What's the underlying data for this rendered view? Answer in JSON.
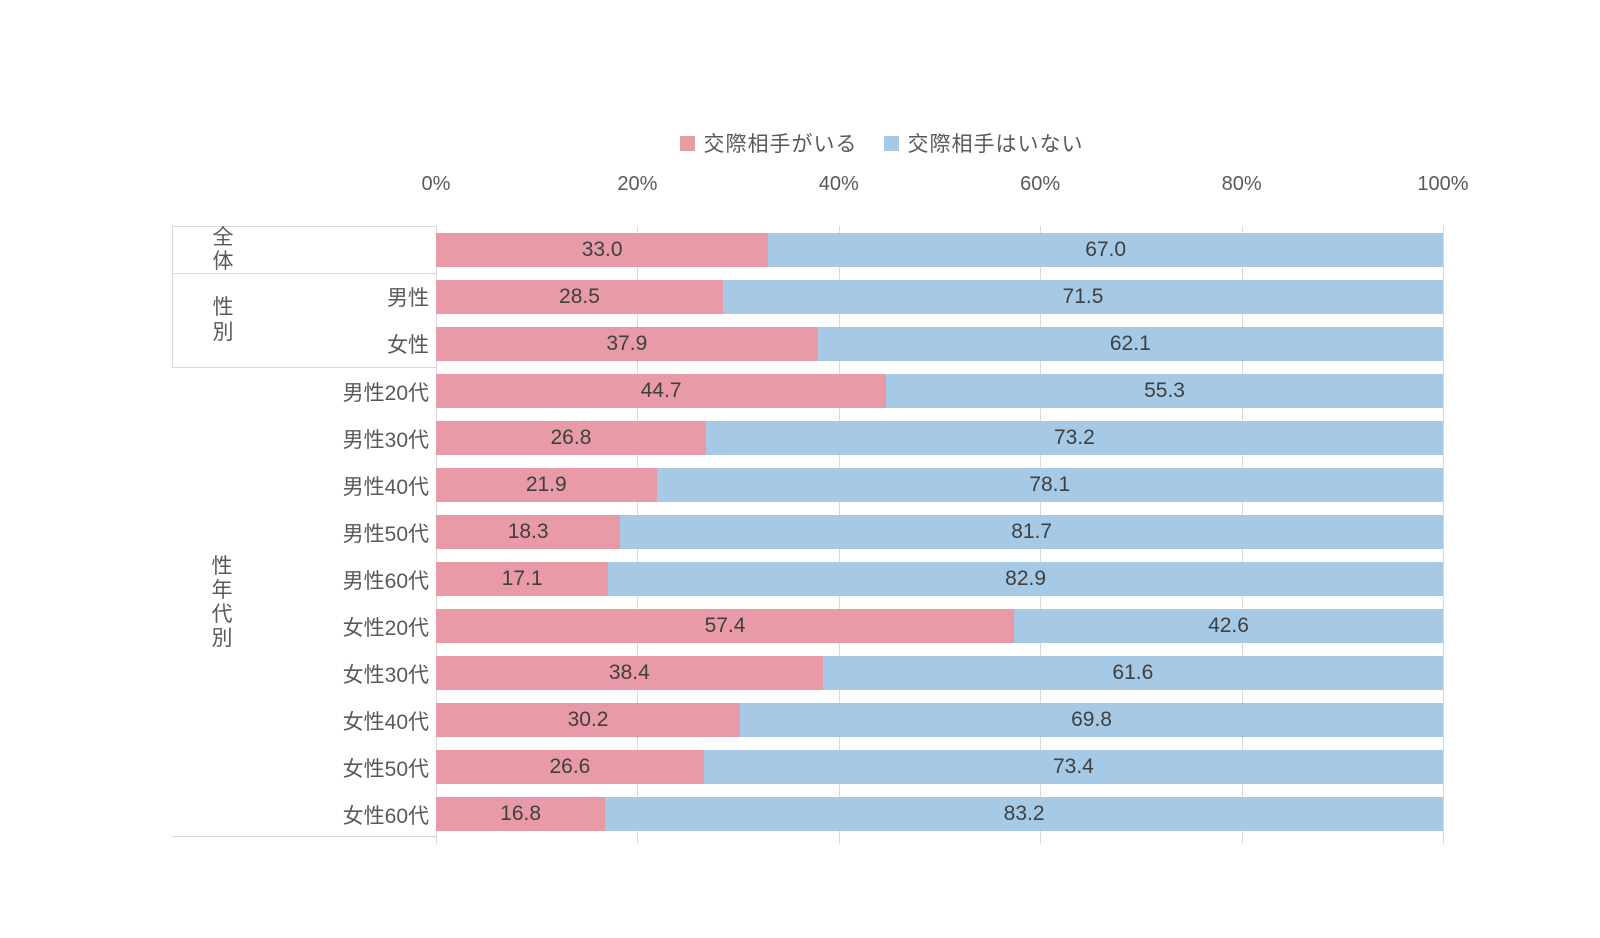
{
  "chart_data": {
    "type": "bar",
    "variant": "100-percent-stacked",
    "orientation": "horizontal",
    "title": "",
    "legend": {
      "position": "top",
      "items": [
        {
          "label": "交際相手がいる",
          "color": "#E89BA7"
        },
        {
          "label": "交際相手はいない",
          "color": "#A6C9E5"
        }
      ]
    },
    "x_axis": {
      "ticks": [
        "0%",
        "20%",
        "40%",
        "60%",
        "80%",
        "100%"
      ],
      "tick_values": [
        0,
        20,
        40,
        60,
        80,
        100
      ],
      "range": [
        0,
        100
      ],
      "unit": "%",
      "grid": true
    },
    "groups": [
      {
        "label": "全体",
        "span": 1,
        "show_row_labels": false
      },
      {
        "label": "性別",
        "span": 2,
        "show_row_labels": true
      },
      {
        "label": "性年代別",
        "span": 10,
        "show_row_labels": true
      }
    ],
    "categories": [
      "全体",
      "男性",
      "女性",
      "男性20代",
      "男性30代",
      "男性40代",
      "男性50代",
      "男性60代",
      "女性20代",
      "女性30代",
      "女性40代",
      "女性50代",
      "女性60代"
    ],
    "series": [
      {
        "name": "交際相手がいる",
        "color": "#E89BA7",
        "values": [
          33.0,
          28.5,
          37.9,
          44.7,
          26.8,
          21.9,
          18.3,
          17.1,
          57.4,
          38.4,
          30.2,
          26.6,
          16.8
        ]
      },
      {
        "name": "交際相手はいない",
        "color": "#A6C9E5",
        "values": [
          67.0,
          71.5,
          62.1,
          55.3,
          73.2,
          78.1,
          81.7,
          82.9,
          42.6,
          61.6,
          69.8,
          73.4,
          83.2
        ]
      }
    ],
    "value_label_decimals": 1
  },
  "colors": {
    "series_1": "#E89BA7",
    "series_2": "#A6C9E5",
    "gridline": "#D9D9D9",
    "panel_border": "#D9D9D9",
    "tick_label_text": "#595959",
    "category_label_text": "#595959",
    "value_label_text": "#3F3F3F",
    "background": "#FFFFFF"
  }
}
